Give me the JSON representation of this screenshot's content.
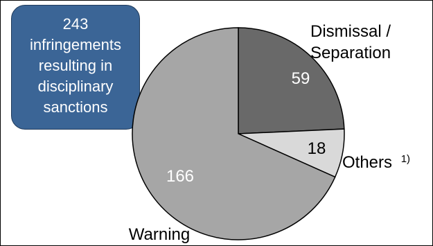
{
  "callout": {
    "lines": [
      "243",
      "infringements",
      "resulting in",
      "disciplinary",
      "sanctions"
    ],
    "color": "#3b6596"
  },
  "chart_data": {
    "type": "pie",
    "title": "",
    "slices": [
      {
        "label_lines": [
          "Dismissal /",
          "Separation"
        ],
        "value": 59,
        "color": "#696969",
        "value_color": "#ffffff"
      },
      {
        "label_lines": [
          "Others"
        ],
        "label_suffix": "1)",
        "value": 18,
        "color": "#d9d9d9",
        "value_color": "#000000"
      },
      {
        "label_lines": [
          "Warning"
        ],
        "value": 166,
        "color": "#a6a6a6",
        "value_color": "#ffffff"
      }
    ],
    "total": 243,
    "start_angle": "12 o'clock",
    "direction": "clockwise"
  }
}
